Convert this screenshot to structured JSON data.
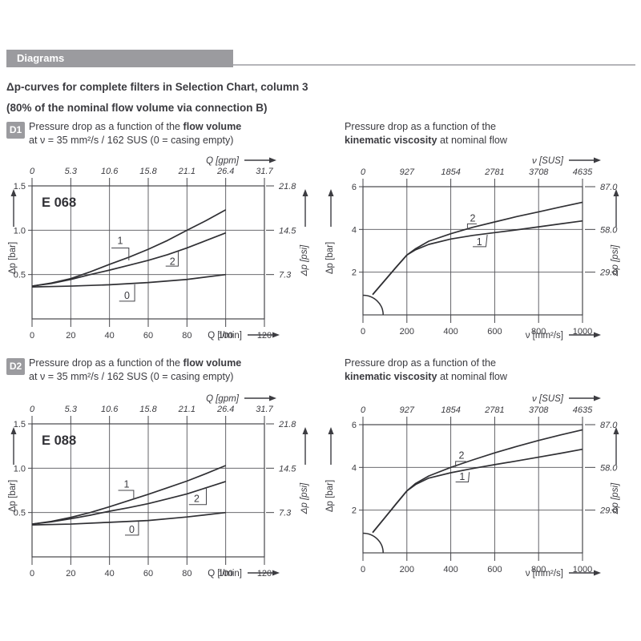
{
  "header": {
    "bar_label": "Diagrams"
  },
  "heading": {
    "line1": "Δp-curves for complete filters in Selection Chart, column 3",
    "line2": "(80% of the nominal flow volume via connection B)"
  },
  "sections": [
    {
      "badge": "D1",
      "flow_title": [
        [
          [
            "Pressure drop as a function of the ",
            0
          ],
          [
            "flow volume",
            1
          ]
        ],
        [
          [
            "at ν = 35 mm²/s / 162 SUS (0 = casing empty)",
            0
          ]
        ]
      ],
      "visc_title": [
        [
          [
            "Pressure drop as a function of the",
            0
          ]
        ],
        [
          [
            "kinematic viscosity",
            1
          ],
          [
            " at nominal flow",
            0
          ]
        ]
      ]
    },
    {
      "badge": "D2",
      "flow_title": [
        [
          [
            "Pressure drop as a function of the ",
            0
          ],
          [
            "flow volume",
            1
          ]
        ],
        [
          [
            "at ν = 35 mm²/s / 162 SUS (0 = casing empty)",
            0
          ]
        ]
      ],
      "visc_title": [
        [
          [
            "Pressure drop as a function of the",
            0
          ]
        ],
        [
          [
            "kinematic viscosity",
            1
          ],
          [
            " at nominal flow",
            0
          ]
        ]
      ]
    }
  ],
  "chart_data": [
    {
      "id": "d1-flow",
      "kind": "flow",
      "type": "line",
      "inner_label": "E 068",
      "xlim": [
        0,
        120
      ],
      "ylim": [
        0,
        1.5
      ],
      "grid": true,
      "x_axis": {
        "label": "Q [l/min]",
        "ticks": [
          [
            0,
            "0"
          ],
          [
            20,
            "20"
          ],
          [
            40,
            "40"
          ],
          [
            60,
            "60"
          ],
          [
            80,
            "80"
          ],
          [
            100,
            "100"
          ],
          [
            120,
            "120"
          ]
        ]
      },
      "x2_axis": {
        "label": "Q [gpm]",
        "ticks": [
          [
            0,
            "0"
          ],
          [
            20,
            "5.3"
          ],
          [
            40,
            "10.6"
          ],
          [
            60,
            "15.8"
          ],
          [
            80,
            "21.1"
          ],
          [
            100,
            "26.4"
          ],
          [
            120,
            "31.7"
          ]
        ]
      },
      "y_axis": {
        "label": "Δp [bar]",
        "ticks": [
          [
            0.5,
            "0.5"
          ],
          [
            1,
            "1.0"
          ],
          [
            1.5,
            "1.5"
          ]
        ]
      },
      "y2_axis": {
        "label": "Δp [psi]",
        "ticks": [
          [
            0.5,
            "7.3"
          ],
          [
            1,
            "14.5"
          ],
          [
            1.5,
            "21.8"
          ]
        ]
      },
      "series": [
        {
          "name": "1",
          "points": [
            [
              0,
              0.37
            ],
            [
              10,
              0.405
            ],
            [
              20,
              0.455
            ],
            [
              30,
              0.53
            ],
            [
              40,
              0.615
            ],
            [
              50,
              0.695
            ],
            [
              60,
              0.785
            ],
            [
              70,
              0.885
            ],
            [
              80,
              1.0
            ],
            [
              90,
              1.11
            ],
            [
              100,
              1.23
            ]
          ]
        },
        {
          "name": "2",
          "points": [
            [
              0,
              0.37
            ],
            [
              10,
              0.4
            ],
            [
              20,
              0.445
            ],
            [
              30,
              0.5
            ],
            [
              40,
              0.55
            ],
            [
              50,
              0.605
            ],
            [
              60,
              0.66
            ],
            [
              70,
              0.725
            ],
            [
              80,
              0.8
            ],
            [
              90,
              0.885
            ],
            [
              100,
              0.97
            ]
          ]
        },
        {
          "name": "0",
          "points": [
            [
              0,
              0.36
            ],
            [
              20,
              0.37
            ],
            [
              40,
              0.385
            ],
            [
              60,
              0.41
            ],
            [
              80,
              0.445
            ],
            [
              100,
              0.5
            ]
          ]
        }
      ],
      "curve_labels": [
        {
          "text": "1",
          "x": 45.5,
          "y": 0.88,
          "leader": [
            [
              41,
              0.8
            ],
            [
              50,
              0.8
            ],
            [
              50,
              0.66
            ]
          ]
        },
        {
          "text": "2",
          "x": 72.5,
          "y": 0.645,
          "leader": [
            [
              69,
              0.595
            ],
            [
              75.5,
              0.595
            ],
            [
              75.5,
              0.76
            ]
          ]
        },
        {
          "text": "0",
          "x": 49,
          "y": 0.26,
          "leader": [
            [
              45,
              0.2
            ],
            [
              53,
              0.2
            ],
            [
              53,
              0.39
            ]
          ]
        }
      ],
      "arc": null
    },
    {
      "id": "d1-visc",
      "kind": "visc",
      "type": "line",
      "inner_label": "",
      "xlim": [
        0,
        1000
      ],
      "ylim": [
        0,
        6
      ],
      "grid": true,
      "x_axis": {
        "label": "ν [mm²/s]",
        "ticks": [
          [
            0,
            "0"
          ],
          [
            200,
            "200"
          ],
          [
            400,
            "400"
          ],
          [
            600,
            "600"
          ],
          [
            800,
            "800"
          ],
          [
            1000,
            "1000"
          ]
        ]
      },
      "x2_axis": {
        "label": "ν [SUS]",
        "ticks": [
          [
            0,
            "0"
          ],
          [
            200,
            "927"
          ],
          [
            400,
            "1854"
          ],
          [
            600,
            "2781"
          ],
          [
            800,
            "3708"
          ],
          [
            1000,
            "4635"
          ]
        ]
      },
      "y_axis": {
        "label": "Δp [bar]",
        "ticks": [
          [
            2,
            "2"
          ],
          [
            4,
            "4"
          ],
          [
            6,
            "6"
          ]
        ]
      },
      "y2_axis": {
        "label": "Δp [psi]",
        "ticks": [
          [
            2,
            "29.0"
          ],
          [
            4,
            "58.0"
          ],
          [
            6,
            "87.0"
          ]
        ]
      },
      "series": [
        {
          "name": "2",
          "points": [
            [
              44,
              0.95
            ],
            [
              100,
              1.62
            ],
            [
              150,
              2.22
            ],
            [
              200,
              2.8
            ],
            [
              240,
              3.1
            ],
            [
              300,
              3.45
            ],
            [
              400,
              3.8
            ],
            [
              500,
              4.1
            ],
            [
              600,
              4.35
            ],
            [
              700,
              4.6
            ],
            [
              800,
              4.82
            ],
            [
              900,
              5.05
            ],
            [
              1000,
              5.27
            ]
          ]
        },
        {
          "name": "1",
          "points": [
            [
              44,
              0.95
            ],
            [
              100,
              1.62
            ],
            [
              150,
              2.22
            ],
            [
              200,
              2.8
            ],
            [
              240,
              3.05
            ],
            [
              300,
              3.3
            ],
            [
              400,
              3.55
            ],
            [
              500,
              3.72
            ],
            [
              600,
              3.85
            ],
            [
              700,
              3.98
            ],
            [
              800,
              4.12
            ],
            [
              900,
              4.26
            ],
            [
              1000,
              4.4
            ]
          ]
        }
      ],
      "curve_labels": [
        {
          "text": "2",
          "x": 500,
          "y": 4.52,
          "leader": [
            [
              518,
              4.26
            ],
            [
              476,
              4.26
            ],
            [
              476,
              4.0
            ]
          ]
        },
        {
          "text": "1",
          "x": 530,
          "y": 3.42,
          "leader": [
            [
              500,
              3.19
            ],
            [
              560,
              3.19
            ],
            [
              566,
              3.75
            ]
          ]
        }
      ],
      "arc": [
        92,
        0.92
      ]
    },
    {
      "id": "d2-flow",
      "kind": "flow",
      "type": "line",
      "inner_label": "E 088",
      "xlim": [
        0,
        120
      ],
      "ylim": [
        0,
        1.5
      ],
      "grid": true,
      "x_axis": {
        "label": "Q [l/min]",
        "ticks": [
          [
            0,
            "0"
          ],
          [
            20,
            "20"
          ],
          [
            40,
            "40"
          ],
          [
            60,
            "60"
          ],
          [
            80,
            "80"
          ],
          [
            100,
            "100"
          ],
          [
            120,
            "120"
          ]
        ]
      },
      "x2_axis": {
        "label": "Q [gpm]",
        "ticks": [
          [
            0,
            "0"
          ],
          [
            20,
            "5.3"
          ],
          [
            40,
            "10.6"
          ],
          [
            60,
            "15.8"
          ],
          [
            80,
            "21.1"
          ],
          [
            100,
            "26.4"
          ],
          [
            120,
            "31.7"
          ]
        ]
      },
      "y_axis": {
        "label": "Δp [bar]",
        "ticks": [
          [
            0.5,
            "0.5"
          ],
          [
            1,
            "1.0"
          ],
          [
            1.5,
            "1.5"
          ]
        ]
      },
      "y2_axis": {
        "label": "Δp [psi]",
        "ticks": [
          [
            0.5,
            "7.3"
          ],
          [
            1,
            "14.5"
          ],
          [
            1.5,
            "21.8"
          ]
        ]
      },
      "series": [
        {
          "name": "1",
          "points": [
            [
              0,
              0.37
            ],
            [
              10,
              0.4
            ],
            [
              20,
              0.445
            ],
            [
              30,
              0.5
            ],
            [
              40,
              0.565
            ],
            [
              50,
              0.635
            ],
            [
              60,
              0.705
            ],
            [
              70,
              0.78
            ],
            [
              80,
              0.855
            ],
            [
              90,
              0.94
            ],
            [
              100,
              1.03
            ]
          ]
        },
        {
          "name": "2",
          "points": [
            [
              0,
              0.37
            ],
            [
              10,
              0.395
            ],
            [
              20,
              0.43
            ],
            [
              30,
              0.47
            ],
            [
              40,
              0.515
            ],
            [
              50,
              0.555
            ],
            [
              60,
              0.6
            ],
            [
              70,
              0.655
            ],
            [
              80,
              0.71
            ],
            [
              90,
              0.78
            ],
            [
              100,
              0.85
            ]
          ]
        },
        {
          "name": "0",
          "points": [
            [
              0,
              0.36
            ],
            [
              20,
              0.37
            ],
            [
              40,
              0.39
            ],
            [
              60,
              0.41
            ],
            [
              80,
              0.45
            ],
            [
              100,
              0.5
            ]
          ]
        }
      ],
      "curve_labels": [
        {
          "text": "1",
          "x": 48.8,
          "y": 0.82,
          "leader": [
            [
              44.5,
              0.75
            ],
            [
              52.5,
              0.75
            ],
            [
              52.5,
              0.65
            ]
          ]
        },
        {
          "text": "2",
          "x": 85,
          "y": 0.655,
          "leader": [
            [
              81,
              0.59
            ],
            [
              90,
              0.59
            ],
            [
              90,
              0.78
            ]
          ]
        },
        {
          "text": "0",
          "x": 51.5,
          "y": 0.305,
          "leader": [
            [
              48,
              0.245
            ],
            [
              55,
              0.245
            ],
            [
              55,
              0.4
            ]
          ]
        }
      ],
      "arc": null
    },
    {
      "id": "d2-visc",
      "kind": "visc",
      "type": "line",
      "inner_label": "",
      "xlim": [
        0,
        1000
      ],
      "ylim": [
        0,
        6
      ],
      "grid": true,
      "x_axis": {
        "label": "ν [mm²/s]",
        "ticks": [
          [
            0,
            "0"
          ],
          [
            200,
            "200"
          ],
          [
            400,
            "400"
          ],
          [
            600,
            "600"
          ],
          [
            800,
            "800"
          ],
          [
            1000,
            "1000"
          ]
        ]
      },
      "x2_axis": {
        "label": "ν [SUS]",
        "ticks": [
          [
            0,
            "0"
          ],
          [
            200,
            "927"
          ],
          [
            400,
            "1854"
          ],
          [
            600,
            "2781"
          ],
          [
            800,
            "3708"
          ],
          [
            1000,
            "4635"
          ]
        ]
      },
      "y_axis": {
        "label": "Δp [bar]",
        "ticks": [
          [
            2,
            "2"
          ],
          [
            4,
            "4"
          ],
          [
            6,
            "6"
          ]
        ]
      },
      "y2_axis": {
        "label": "Δp [psi]",
        "ticks": [
          [
            2,
            "29.0"
          ],
          [
            4,
            "58.0"
          ],
          [
            6,
            "87.0"
          ]
        ]
      },
      "series": [
        {
          "name": "2",
          "points": [
            [
              44,
              0.95
            ],
            [
              100,
              1.65
            ],
            [
              150,
              2.28
            ],
            [
              200,
              2.9
            ],
            [
              240,
              3.25
            ],
            [
              300,
              3.6
            ],
            [
              400,
              4.0
            ],
            [
              500,
              4.35
            ],
            [
              600,
              4.68
            ],
            [
              700,
              4.98
            ],
            [
              800,
              5.26
            ],
            [
              900,
              5.52
            ],
            [
              1000,
              5.76
            ]
          ]
        },
        {
          "name": "1",
          "points": [
            [
              44,
              0.95
            ],
            [
              100,
              1.65
            ],
            [
              150,
              2.28
            ],
            [
              200,
              2.9
            ],
            [
              240,
              3.2
            ],
            [
              300,
              3.5
            ],
            [
              400,
              3.75
            ],
            [
              500,
              3.95
            ],
            [
              600,
              4.13
            ],
            [
              700,
              4.3
            ],
            [
              800,
              4.48
            ],
            [
              900,
              4.66
            ],
            [
              1000,
              4.85
            ]
          ]
        }
      ],
      "curve_labels": [
        {
          "text": "2",
          "x": 449,
          "y": 4.56,
          "leader": [
            [
              470,
              4.28
            ],
            [
              422,
              4.28
            ],
            [
              422,
              4.02
            ]
          ]
        },
        {
          "text": "1",
          "x": 452,
          "y": 3.56,
          "leader": [
            [
              422,
              3.32
            ],
            [
              480,
              3.32
            ],
            [
              484,
              3.78
            ]
          ]
        }
      ],
      "arc": [
        92,
        0.92
      ]
    }
  ]
}
